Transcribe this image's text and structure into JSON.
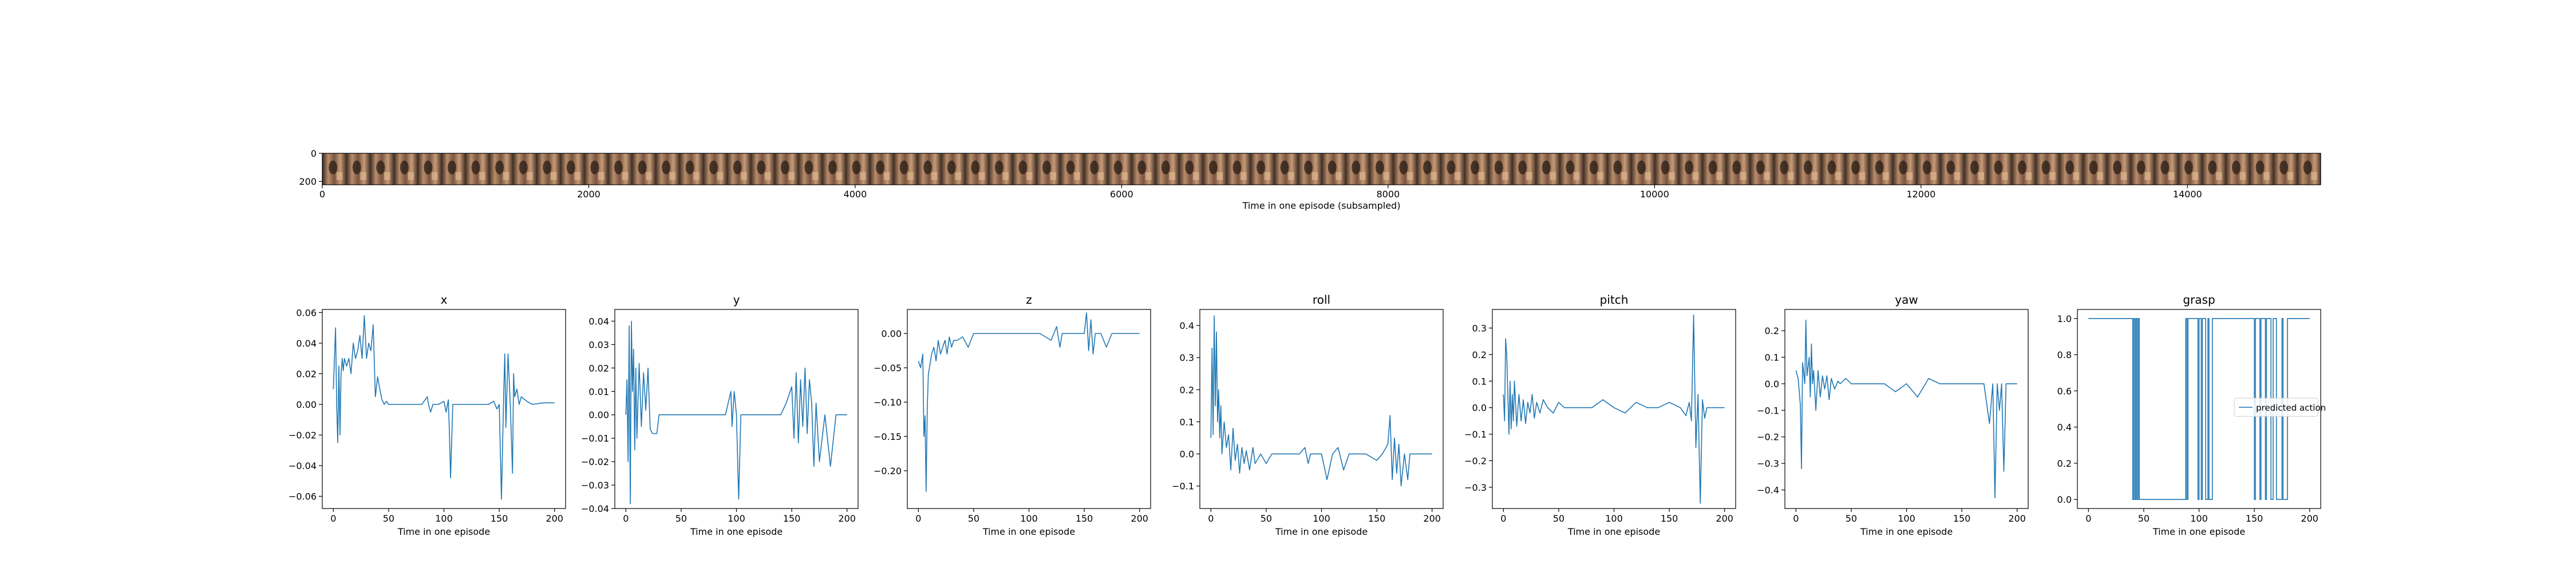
{
  "chart_data": [
    {
      "type": "image-strip",
      "xlabel": "Time in one episode (subsampled)",
      "xlim": [
        0,
        15000
      ],
      "ylim": [
        224,
        0
      ],
      "xticks": [
        0,
        2000,
        4000,
        6000,
        8000,
        10000,
        12000,
        14000
      ],
      "yticks": [
        0,
        200
      ],
      "frames": 84
    },
    {
      "type": "line",
      "title": "x",
      "xlabel": "Time in one episode",
      "xlim": [
        -10,
        210
      ],
      "ylim": [
        -0.068,
        0.062
      ],
      "xticks": [
        0,
        50,
        100,
        150,
        200
      ],
      "yticks": [
        -0.06,
        -0.04,
        -0.02,
        0.0,
        0.02,
        0.04,
        0.06
      ],
      "ytick_labels": [
        "−0.06",
        "−0.04",
        "−0.02",
        "0.00",
        "0.02",
        "0.04",
        "0.06"
      ],
      "series": [
        {
          "x": [
            0,
            2,
            3,
            4,
            5,
            6,
            7,
            8,
            9,
            10,
            12,
            14,
            16,
            18,
            20,
            22,
            24,
            26,
            28,
            30,
            32,
            34,
            36,
            38,
            40,
            42,
            44,
            46,
            48,
            50,
            55,
            60,
            70,
            80,
            85,
            86,
            88,
            90,
            95,
            100,
            102,
            104,
            105,
            106,
            108,
            110,
            115,
            120,
            130,
            140,
            145,
            148,
            150,
            152,
            154,
            155,
            156,
            158,
            160,
            162,
            163,
            164,
            166,
            168,
            170,
            175,
            180,
            190,
            200
          ],
          "y": [
            0.01,
            0.05,
            0.0,
            -0.025,
            0.025,
            -0.02,
            0.02,
            0.03,
            0.022,
            0.03,
            0.025,
            0.03,
            0.02,
            0.04,
            0.03,
            0.035,
            0.045,
            0.03,
            0.058,
            0.03,
            0.04,
            0.035,
            0.052,
            0.005,
            0.018,
            0.01,
            0.003,
            0.0,
            0.002,
            0.0,
            0.0,
            0.0,
            0.0,
            0.0,
            0.005,
            0.0,
            -0.005,
            0.0,
            0.0,
            0.002,
            -0.005,
            0.003,
            -0.02,
            -0.048,
            0.0,
            0.0,
            0.0,
            0.0,
            0.0,
            0.0,
            0.002,
            -0.003,
            0.0,
            -0.062,
            0.005,
            0.033,
            -0.015,
            0.033,
            0.0,
            -0.045,
            0.02,
            0.005,
            0.01,
            0.0,
            0.005,
            0.002,
            0.0,
            0.001,
            0.001
          ]
        }
      ]
    },
    {
      "type": "line",
      "title": "y",
      "xlabel": "Time in one episode",
      "xlim": [
        -10,
        210
      ],
      "ylim": [
        -0.04,
        0.045
      ],
      "xticks": [
        0,
        50,
        100,
        150,
        200
      ],
      "yticks": [
        -0.04,
        -0.03,
        -0.02,
        -0.01,
        0.0,
        0.01,
        0.02,
        0.03,
        0.04
      ],
      "ytick_labels": [
        "−0.04",
        "−0.03",
        "−0.02",
        "−0.01",
        "0.00",
        "0.01",
        "0.02",
        "0.03",
        "0.04"
      ],
      "series": [
        {
          "x": [
            0,
            1,
            2,
            3,
            4,
            5,
            6,
            7,
            8,
            9,
            10,
            12,
            14,
            16,
            18,
            20,
            22,
            24,
            26,
            28,
            30,
            35,
            40,
            50,
            60,
            70,
            80,
            90,
            95,
            96,
            98,
            100,
            102,
            104,
            105,
            106,
            108,
            110,
            115,
            120,
            130,
            140,
            145,
            150,
            152,
            154,
            156,
            158,
            160,
            162,
            164,
            166,
            168,
            170,
            172,
            175,
            180,
            185,
            190,
            200
          ],
          "y": [
            0.0,
            0.015,
            -0.02,
            0.038,
            -0.038,
            0.04,
            0.01,
            0.028,
            -0.015,
            0.02,
            -0.01,
            0.022,
            -0.005,
            0.018,
            0.002,
            0.02,
            -0.006,
            -0.008,
            -0.008,
            -0.008,
            0.0,
            0.0,
            0.0,
            0.0,
            0.0,
            0.0,
            0.0,
            0.0,
            0.01,
            -0.005,
            0.01,
            0.0,
            -0.036,
            0.0,
            0.0,
            0.0,
            0.0,
            0.0,
            0.0,
            0.0,
            0.0,
            0.0,
            0.005,
            0.012,
            -0.01,
            0.018,
            -0.012,
            0.015,
            -0.005,
            0.02,
            -0.008,
            0.015,
            0.005,
            -0.022,
            0.005,
            -0.02,
            0.0,
            -0.022,
            0.0,
            0.0
          ]
        }
      ]
    },
    {
      "type": "line",
      "title": "z",
      "xlabel": "Time in one episode",
      "xlim": [
        -10,
        210
      ],
      "ylim": [
        -0.255,
        0.035
      ],
      "xticks": [
        0,
        50,
        100,
        150,
        200
      ],
      "yticks": [
        -0.2,
        -0.15,
        -0.1,
        -0.05,
        0.0
      ],
      "ytick_labels": [
        "−0.20",
        "−0.15",
        "−0.10",
        "−0.05",
        "0.00"
      ],
      "series": [
        {
          "x": [
            0,
            2,
            4,
            5,
            6,
            7,
            8,
            9,
            10,
            12,
            14,
            16,
            18,
            20,
            22,
            24,
            26,
            28,
            30,
            32,
            35,
            40,
            45,
            50,
            55,
            60,
            70,
            80,
            100,
            110,
            120,
            125,
            128,
            130,
            135,
            140,
            145,
            150,
            152,
            154,
            156,
            158,
            160,
            165,
            170,
            175,
            180,
            190,
            200
          ],
          "y": [
            -0.04,
            -0.05,
            -0.03,
            -0.15,
            -0.12,
            -0.23,
            -0.11,
            -0.06,
            -0.05,
            -0.03,
            -0.02,
            -0.04,
            -0.01,
            -0.03,
            -0.02,
            -0.01,
            -0.03,
            -0.005,
            -0.02,
            -0.01,
            -0.01,
            -0.005,
            -0.02,
            0.0,
            0.0,
            0.0,
            0.0,
            0.0,
            0.0,
            0.0,
            -0.01,
            0.01,
            -0.02,
            0.0,
            0.0,
            0.0,
            0.0,
            0.0,
            0.03,
            -0.025,
            0.02,
            -0.03,
            0.0,
            0.0,
            -0.02,
            0.0,
            0.0,
            0.0,
            0.0
          ]
        }
      ]
    },
    {
      "type": "line",
      "title": "roll",
      "xlabel": "Time in one episode",
      "xlim": [
        -10,
        210
      ],
      "ylim": [
        -0.17,
        0.45
      ],
      "xticks": [
        0,
        50,
        100,
        150,
        200
      ],
      "yticks": [
        -0.1,
        0.0,
        0.1,
        0.2,
        0.3,
        0.4
      ],
      "ytick_labels": [
        "−0.1",
        "0.0",
        "0.1",
        "0.2",
        "0.3",
        "0.4"
      ],
      "series": [
        {
          "x": [
            0,
            1,
            2,
            3,
            4,
            5,
            6,
            7,
            8,
            9,
            10,
            12,
            14,
            16,
            18,
            20,
            22,
            24,
            26,
            28,
            30,
            32,
            35,
            38,
            40,
            45,
            50,
            55,
            60,
            70,
            80,
            85,
            88,
            90,
            95,
            100,
            105,
            110,
            115,
            120,
            125,
            130,
            140,
            150,
            155,
            160,
            162,
            164,
            166,
            168,
            170,
            172,
            175,
            178,
            180,
            185,
            190,
            200
          ],
          "y": [
            0.05,
            0.33,
            0.06,
            0.43,
            0.15,
            0.38,
            0.1,
            0.2,
            0.05,
            0.15,
            0.0,
            0.1,
            0.02,
            0.06,
            -0.05,
            0.08,
            -0.02,
            0.03,
            -0.06,
            0.02,
            -0.03,
            0.01,
            -0.05,
            0.02,
            -0.03,
            0.0,
            -0.03,
            0.0,
            0.0,
            0.0,
            0.0,
            0.02,
            -0.03,
            0.0,
            0.0,
            0.0,
            -0.08,
            0.0,
            0.02,
            -0.05,
            0.0,
            0.0,
            0.0,
            -0.02,
            0.0,
            0.03,
            0.12,
            -0.08,
            0.05,
            -0.06,
            0.03,
            -0.1,
            0.0,
            -0.08,
            0.0,
            0.0,
            0.0,
            0.0
          ]
        }
      ]
    },
    {
      "type": "line",
      "title": "pitch",
      "xlabel": "Time in one episode",
      "xlim": [
        -10,
        210
      ],
      "ylim": [
        -0.38,
        0.37
      ],
      "xticks": [
        0,
        50,
        100,
        150,
        200
      ],
      "yticks": [
        -0.3,
        -0.2,
        -0.1,
        0.0,
        0.1,
        0.2,
        0.3
      ],
      "ytick_labels": [
        "−0.3",
        "−0.2",
        "−0.1",
        "0.0",
        "0.1",
        "0.2",
        "0.3"
      ],
      "series": [
        {
          "x": [
            0,
            1,
            2,
            3,
            4,
            5,
            6,
            7,
            8,
            9,
            10,
            12,
            14,
            16,
            18,
            20,
            22,
            24,
            26,
            28,
            30,
            33,
            36,
            40,
            45,
            50,
            55,
            60,
            70,
            80,
            90,
            100,
            110,
            120,
            130,
            140,
            150,
            160,
            165,
            168,
            170,
            172,
            174,
            176,
            178,
            180,
            182,
            184,
            186,
            190,
            200
          ],
          "y": [
            0.05,
            -0.05,
            0.26,
            0.2,
            0.05,
            -0.1,
            0.1,
            -0.08,
            0.05,
            -0.05,
            0.1,
            -0.07,
            0.05,
            -0.05,
            0.03,
            -0.06,
            0.02,
            -0.02,
            0.05,
            -0.04,
            0.02,
            -0.02,
            0.03,
            0.0,
            -0.02,
            0.02,
            0.0,
            0.0,
            0.0,
            0.0,
            0.03,
            0.0,
            -0.02,
            0.02,
            0.0,
            0.0,
            0.02,
            0.0,
            -0.03,
            0.02,
            -0.05,
            0.35,
            -0.15,
            0.05,
            -0.36,
            0.03,
            -0.04,
            0.0,
            0.0,
            0.0,
            0.0
          ]
        }
      ]
    },
    {
      "type": "line",
      "title": "yaw",
      "xlabel": "Time in one episode",
      "xlim": [
        -10,
        210
      ],
      "ylim": [
        -0.47,
        0.28
      ],
      "xticks": [
        0,
        50,
        100,
        150,
        200
      ],
      "yticks": [
        -0.4,
        -0.3,
        -0.2,
        -0.1,
        0.0,
        0.1,
        0.2
      ],
      "ytick_labels": [
        "−0.4",
        "−0.3",
        "−0.2",
        "−0.1",
        "0.0",
        "0.1",
        "0.2"
      ],
      "series": [
        {
          "x": [
            0,
            2,
            4,
            5,
            6,
            8,
            9,
            10,
            12,
            13,
            14,
            15,
            16,
            18,
            20,
            22,
            24,
            26,
            28,
            30,
            32,
            35,
            38,
            40,
            45,
            50,
            55,
            60,
            70,
            80,
            90,
            100,
            110,
            120,
            130,
            140,
            150,
            160,
            170,
            175,
            178,
            180,
            182,
            184,
            186,
            188,
            190,
            200
          ],
          "y": [
            0.05,
            0.02,
            -0.08,
            -0.32,
            0.08,
            0.0,
            0.24,
            0.03,
            0.1,
            -0.05,
            0.15,
            0.0,
            0.05,
            -0.1,
            0.05,
            -0.05,
            0.03,
            -0.02,
            0.03,
            -0.06,
            0.02,
            -0.02,
            0.01,
            0.0,
            0.02,
            0.0,
            0.0,
            0.0,
            0.0,
            0.0,
            -0.03,
            0.0,
            -0.05,
            0.02,
            0.0,
            0.0,
            0.0,
            0.0,
            0.0,
            -0.15,
            0.0,
            -0.43,
            0.0,
            -0.1,
            0.0,
            -0.33,
            0.0,
            0.0
          ]
        }
      ]
    },
    {
      "type": "line",
      "title": "grasp",
      "xlabel": "Time in one episode",
      "xlim": [
        -10,
        210
      ],
      "ylim": [
        -0.05,
        1.05
      ],
      "xticks": [
        0,
        50,
        100,
        150,
        200
      ],
      "yticks": [
        0.0,
        0.2,
        0.4,
        0.6,
        0.8,
        1.0
      ],
      "ytick_labels": [
        "0.0",
        "0.2",
        "0.4",
        "0.6",
        "0.8",
        "1.0"
      ],
      "legend": "center-right",
      "series": [
        {
          "name": "predicted action",
          "x": [
            0,
            40,
            40,
            41,
            41,
            42,
            42,
            43,
            43,
            44,
            44,
            45,
            45,
            46,
            46,
            47,
            47,
            88,
            88,
            89,
            89,
            90,
            90,
            99,
            99,
            100,
            100,
            102,
            102,
            103,
            103,
            106,
            106,
            108,
            108,
            109,
            109,
            112,
            112,
            113,
            113,
            150,
            150,
            151,
            151,
            155,
            155,
            156,
            156,
            160,
            160,
            161,
            161,
            165,
            165,
            167,
            167,
            170,
            170,
            175,
            175,
            176,
            176,
            180,
            180,
            200
          ],
          "y": [
            1,
            1,
            0,
            0,
            1,
            1,
            0,
            0,
            1,
            1,
            0,
            0,
            1,
            1,
            0,
            0,
            0,
            0,
            1,
            1,
            0,
            0,
            1,
            1,
            0,
            0,
            1,
            1,
            0,
            0,
            1,
            1,
            0,
            0,
            1,
            1,
            0,
            0,
            1,
            1,
            1,
            1,
            0,
            0,
            1,
            1,
            0,
            0,
            1,
            1,
            0,
            0,
            1,
            1,
            0,
            0,
            1,
            1,
            0,
            0,
            1,
            1,
            0,
            0,
            1,
            1
          ]
        }
      ]
    }
  ]
}
